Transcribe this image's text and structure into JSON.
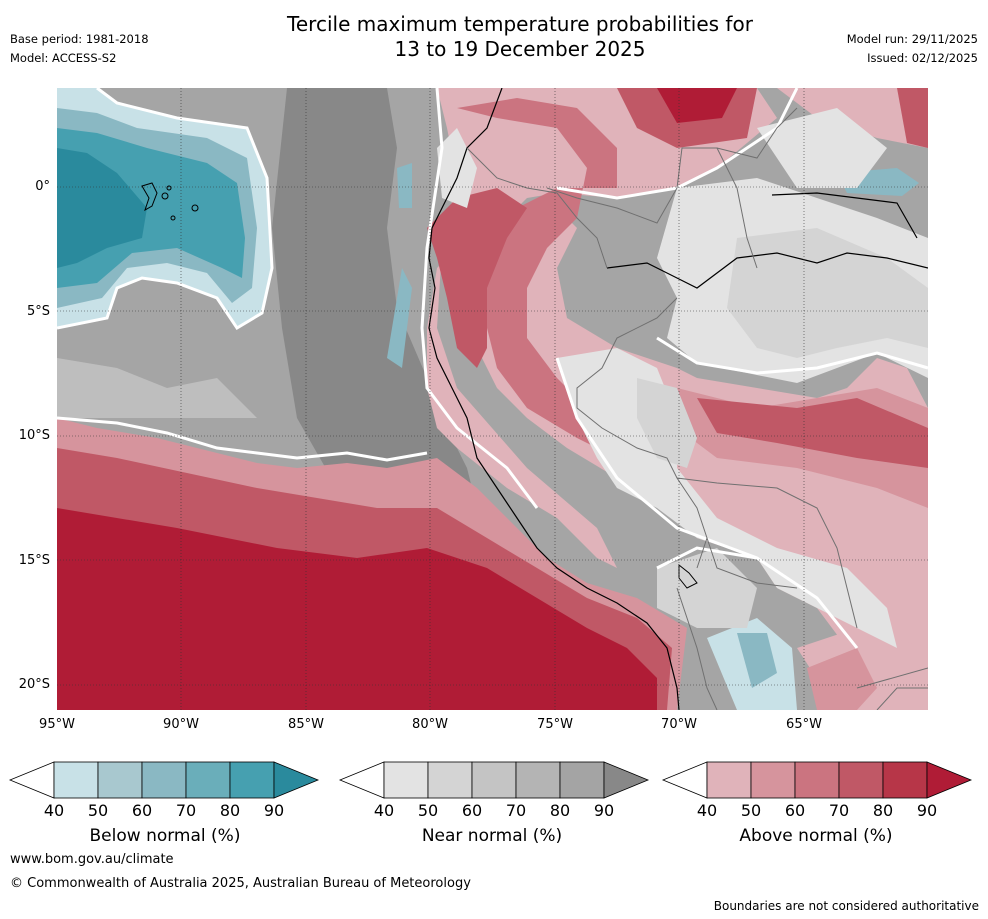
{
  "title": {
    "line1": "Tercile maximum temperature probabilities for",
    "line2": "13 to 19 December 2025"
  },
  "meta": {
    "base_period": "Base period: 1981-2018",
    "model": "Model: ACCESS-S2",
    "model_run": "Model run: 29/11/2025",
    "issued": "Issued: 02/12/2025"
  },
  "axes": {
    "lat_labels": [
      "0°",
      "5°S",
      "10°S",
      "15°S",
      "20°S"
    ],
    "lon_labels": [
      "95°W",
      "90°W",
      "85°W",
      "80°W",
      "75°W",
      "70°W",
      "65°W"
    ]
  },
  "colorbars": {
    "below": {
      "label": "Below normal (%)",
      "ticks": [
        "40",
        "50",
        "60",
        "70",
        "80",
        "90"
      ],
      "colors": [
        "#c8e1e7",
        "#a8c8cf",
        "#8ab8c3",
        "#6aaeba",
        "#46a0b0",
        "#2a8a9d"
      ]
    },
    "near": {
      "label": "Near normal (%)",
      "ticks": [
        "40",
        "50",
        "60",
        "70",
        "80",
        "90"
      ],
      "colors": [
        "#e3e3e3",
        "#d4d4d4",
        "#c4c4c4",
        "#b4b4b4",
        "#a4a4a4",
        "#888888"
      ]
    },
    "above": {
      "label": "Above normal (%)",
      "ticks": [
        "40",
        "50",
        "60",
        "70",
        "80",
        "90"
      ],
      "colors": [
        "#e0b3ba",
        "#d6949d",
        "#cb7480",
        "#c05866",
        "#b73648",
        "#b01c36"
      ]
    }
  },
  "footer": {
    "website": "www.bom.gov.au/climate",
    "copyright": "© Commonwealth of Australia 2025, Australian Bureau of Meteorology",
    "disclaimer": "Boundaries are not considered authoritative"
  }
}
